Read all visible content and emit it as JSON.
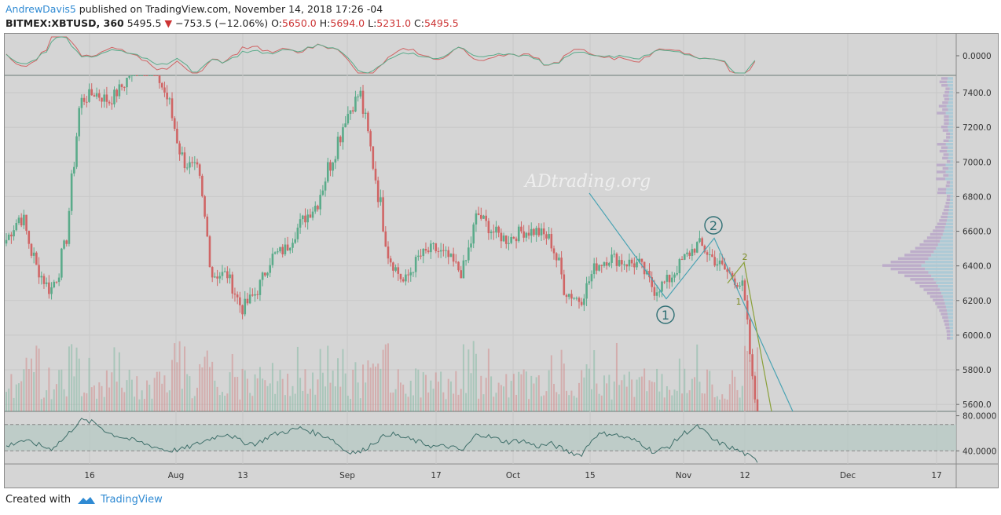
{
  "header": {
    "author": "AndrewDavis5",
    "published": " published on TradingView.com, November 14, 2018 17:26 -04",
    "symbol": "BITMEX:XBTUSD, 360",
    "last": "5495.5",
    "change": "−753.5 (−12.06%)",
    "o_label": "O:",
    "o": "5650.0",
    "h_label": "H:",
    "h": "5694.0",
    "l_label": "L:",
    "l": "5231.0",
    "c_label": "C:",
    "c": "5495.5"
  },
  "footer": {
    "created_with": "Created with",
    "brand": "TradingView"
  },
  "watermark": "ADtrading.org",
  "colors": {
    "up": "#5aab8a",
    "down": "#d06565",
    "trendline": "#4aa3b3",
    "wave": "#8aa03a",
    "rsi_band": "#b8c9c4",
    "volume_profile_up": "#a6c8d6",
    "volume_profile_down": "#b8a6c8"
  },
  "chart_data": [
    {
      "type": "line",
      "title": "",
      "panel": "oscillator (MACD-style)",
      "y_ticks": [
        "0.0000"
      ],
      "series": []
    },
    {
      "type": "candlestick",
      "title": "BITMEX:XBTUSD, 360",
      "ylim": [
        5560,
        7500
      ],
      "y_ticks": [
        "7400.0",
        "7200.0",
        "7000.0",
        "6800.0",
        "6600.0",
        "6400.0",
        "6200.0",
        "6000.0",
        "5800.0",
        "5600.0"
      ],
      "x_ticks": [
        "16",
        "Aug",
        "13",
        "Sep",
        "17",
        "Oct",
        "15",
        "Nov",
        "12",
        "Dec",
        "17"
      ],
      "series": [
        {
          "name": "",
          "x": [
            "Jul 06",
            "Jul 09",
            "Jul 12",
            "Jul 14",
            "Jul 16",
            "Jul 18",
            "Jul 21",
            "Jul 24",
            "Jul 27",
            "Jul 30",
            "Aug 01",
            "Aug 03",
            "Aug 05",
            "Aug 07",
            "Aug 09",
            "Aug 11",
            "Aug 13",
            "Aug 15",
            "Aug 18",
            "Aug 21",
            "Aug 24",
            "Aug 27",
            "Aug 30",
            "Sep 02",
            "Sep 04",
            "Sep 05",
            "Sep 07",
            "Sep 10",
            "Sep 13",
            "Sep 16",
            "Sep 19",
            "Sep 21",
            "Sep 24",
            "Sep 27",
            "Sep 30",
            "Oct 03",
            "Oct 06",
            "Oct 09",
            "Oct 11",
            "Oct 13",
            "Oct 15",
            "Oct 16",
            "Oct 20",
            "Oct 25",
            "Oct 29",
            "Nov 01",
            "Nov 04",
            "Nov 06",
            "Nov 08",
            "Nov 10",
            "Nov 12",
            "Nov 14"
          ],
          "values": [
            6550,
            6700,
            6400,
            6250,
            6500,
            7350,
            7400,
            7350,
            7450,
            7600,
            7550,
            7350,
            7000,
            6950,
            6350,
            6350,
            6150,
            6250,
            6450,
            6500,
            6650,
            6750,
            7000,
            7250,
            7400,
            6950,
            6450,
            6300,
            6450,
            6500,
            6450,
            6350,
            6700,
            6600,
            6550,
            6600,
            6600,
            6550,
            6250,
            6200,
            6400,
            6450,
            6420,
            6410,
            6260,
            6320,
            6440,
            6530,
            6440,
            6360,
            6280,
            5495.5
          ]
        }
      ],
      "annotations": [
        "1",
        "2",
        "1",
        "2"
      ],
      "volume_profile": true
    },
    {
      "type": "line",
      "title": "",
      "panel": "RSI",
      "ylim": [
        25,
        85
      ],
      "y_ticks": [
        "80.0000",
        "40.0000"
      ],
      "band": [
        40,
        70
      ],
      "series": [
        {
          "name": "",
          "values": [
            45,
            52,
            48,
            42,
            55,
            75,
            72,
            60,
            55,
            50,
            45,
            40,
            42,
            48,
            55,
            60,
            50,
            48,
            58,
            62,
            66,
            60,
            55,
            40,
            38,
            50,
            60,
            55,
            50,
            45,
            45,
            40,
            60,
            55,
            50,
            52,
            45,
            48,
            40,
            35,
            58,
            60,
            55,
            50,
            38,
            45,
            60,
            68,
            52,
            45,
            38,
            28
          ]
        }
      ]
    }
  ]
}
